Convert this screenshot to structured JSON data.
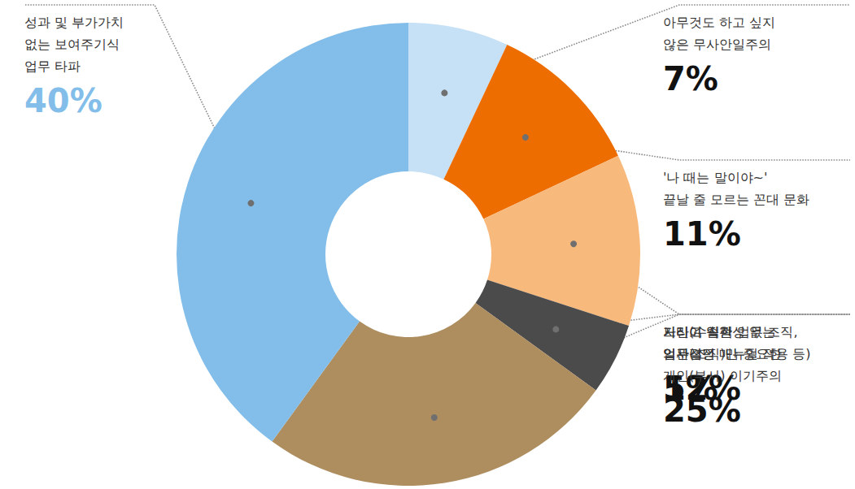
{
  "chart_data": {
    "type": "pie",
    "categories": [
      "아무것도 하고 싶지\n않은 무사안일주의",
      "'나 때는 말이야~'\n끝날 줄 모르는 꼰대 문화",
      "느리고 일관성 없는\n의사결정",
      "기타(수직적 업무 조직,\n일관적인 매뉴얼 적용 등)",
      "자신이 속한\n업무(조직)만 중요한\n개인(부서) 이기주의",
      "성과 및 부가가치\n없는 보여주기식\n업무 타파"
    ],
    "values": [
      7,
      11,
      12,
      5,
      25,
      40
    ],
    "value_labels": [
      "7%",
      "11%",
      "12%",
      "5%",
      "25%",
      "40%"
    ],
    "colors": [
      "#c6e0f5",
      "#ee6d00",
      "#f7b97c",
      "#4b4b4b",
      "#ae8d5f",
      "#82bee9"
    ],
    "data_labels": true
  }
}
